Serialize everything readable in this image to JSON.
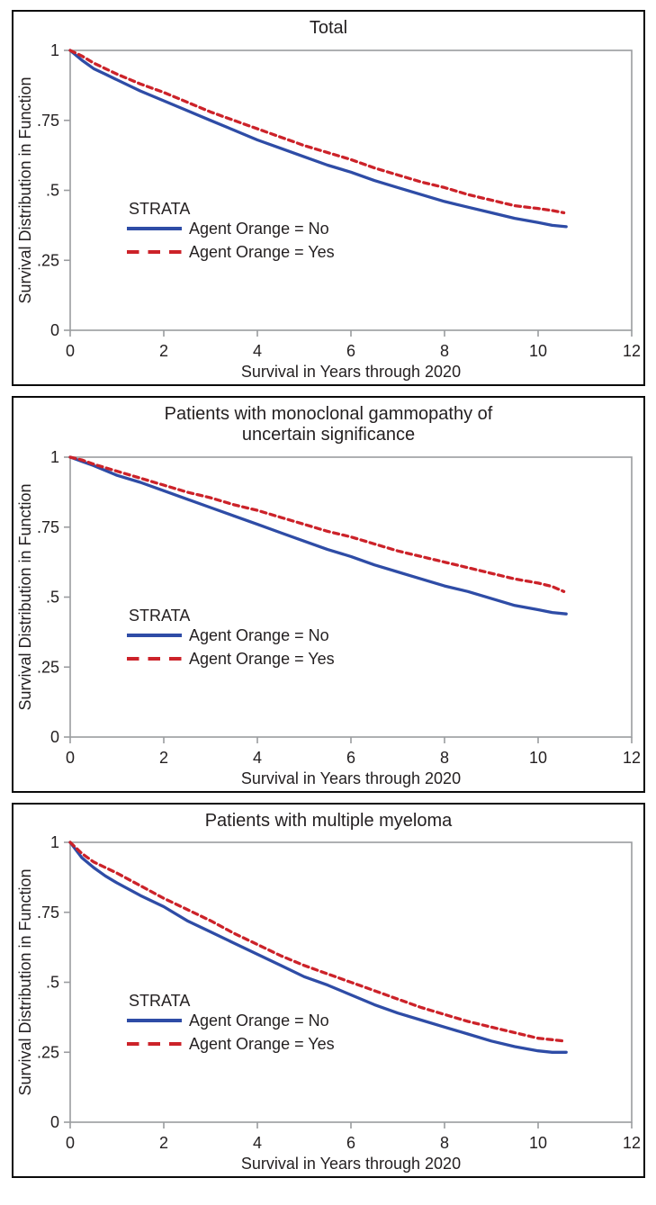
{
  "colors": {
    "no_line": "#2e4ca6",
    "yes_line": "#cc2229",
    "axis": "#9a9c9f",
    "text": "#231f20",
    "panel_border": "#0a0a0a",
    "background": "#ffffff"
  },
  "chart_data": [
    {
      "type": "line",
      "title": "Total",
      "xlabel": "Survival in Years through 2020",
      "ylabel": "Survival Distribution in Function",
      "xlim": [
        0,
        12
      ],
      "ylim": [
        0,
        1
      ],
      "xticks": [
        "0",
        "2",
        "4",
        "6",
        "8",
        "10",
        "12"
      ],
      "xtick_values": [
        0,
        2,
        4,
        6,
        8,
        10,
        12
      ],
      "yticks": [
        "0",
        ".25",
        ".5",
        ".75",
        "1"
      ],
      "ytick_values": [
        0,
        0.25,
        0.5,
        0.75,
        1
      ],
      "grid": false,
      "legend": {
        "title": "STRATA",
        "position": "inside-left",
        "entries": [
          {
            "label": "Agent Orange = No",
            "style": "solid",
            "color": "#2e4ca6"
          },
          {
            "label": "Agent Orange = Yes",
            "style": "dashed",
            "color": "#cc2229"
          }
        ]
      },
      "series": [
        {
          "name": "Agent Orange = No",
          "id": "agent-orange-no",
          "style": "solid",
          "color": "#2e4ca6",
          "x": [
            0,
            0.25,
            0.5,
            0.75,
            1,
            1.5,
            2,
            2.5,
            3,
            3.5,
            4,
            4.5,
            5,
            5.5,
            6,
            6.5,
            7,
            7.5,
            8,
            8.5,
            9,
            9.5,
            10,
            10.3,
            10.6
          ],
          "y": [
            1.0,
            0.965,
            0.935,
            0.915,
            0.895,
            0.855,
            0.82,
            0.785,
            0.75,
            0.715,
            0.68,
            0.65,
            0.62,
            0.59,
            0.565,
            0.535,
            0.51,
            0.485,
            0.46,
            0.44,
            0.42,
            0.4,
            0.385,
            0.375,
            0.37
          ]
        },
        {
          "name": "Agent Orange = Yes",
          "id": "agent-orange-yes",
          "style": "dashed",
          "color": "#cc2229",
          "x": [
            0,
            0.25,
            0.5,
            0.75,
            1,
            1.5,
            2,
            2.5,
            3,
            3.5,
            4,
            4.5,
            5,
            5.5,
            6,
            6.5,
            7,
            7.5,
            8,
            8.5,
            9,
            9.5,
            10,
            10.3,
            10.55
          ],
          "y": [
            1.0,
            0.98,
            0.955,
            0.935,
            0.915,
            0.88,
            0.85,
            0.815,
            0.78,
            0.75,
            0.72,
            0.69,
            0.66,
            0.635,
            0.61,
            0.58,
            0.555,
            0.53,
            0.51,
            0.485,
            0.465,
            0.445,
            0.435,
            0.428,
            0.42
          ]
        }
      ]
    },
    {
      "type": "line",
      "title": "Patients with monoclonal gammopathy of uncertain significance",
      "xlabel": "Survival in Years through 2020",
      "ylabel": "Survival Distribution in Function",
      "xlim": [
        0,
        12
      ],
      "ylim": [
        0,
        1
      ],
      "xticks": [
        "0",
        "2",
        "4",
        "6",
        "8",
        "10",
        "12"
      ],
      "xtick_values": [
        0,
        2,
        4,
        6,
        8,
        10,
        12
      ],
      "yticks": [
        "0",
        ".25",
        ".5",
        ".75",
        "1"
      ],
      "ytick_values": [
        0,
        0.25,
        0.5,
        0.75,
        1
      ],
      "grid": false,
      "legend": {
        "title": "STRATA",
        "position": "inside-left",
        "entries": [
          {
            "label": "Agent Orange = No",
            "style": "solid",
            "color": "#2e4ca6"
          },
          {
            "label": "Agent Orange = Yes",
            "style": "dashed",
            "color": "#cc2229"
          }
        ]
      },
      "series": [
        {
          "name": "Agent Orange = No",
          "id": "agent-orange-no",
          "style": "solid",
          "color": "#2e4ca6",
          "x": [
            0,
            0.25,
            0.5,
            1,
            1.5,
            2,
            2.5,
            3,
            3.5,
            4,
            4.5,
            5,
            5.5,
            6,
            6.5,
            7,
            7.5,
            8,
            8.5,
            9,
            9.5,
            10,
            10.3,
            10.6
          ],
          "y": [
            1.0,
            0.985,
            0.97,
            0.935,
            0.91,
            0.88,
            0.85,
            0.82,
            0.79,
            0.76,
            0.73,
            0.7,
            0.67,
            0.645,
            0.615,
            0.59,
            0.565,
            0.54,
            0.52,
            0.495,
            0.47,
            0.455,
            0.445,
            0.44
          ]
        },
        {
          "name": "Agent Orange = Yes",
          "id": "agent-orange-yes",
          "style": "dashed",
          "color": "#cc2229",
          "x": [
            0,
            0.25,
            0.5,
            1,
            1.5,
            2,
            2.5,
            3,
            3.5,
            4,
            4.5,
            5,
            5.5,
            6,
            6.5,
            7,
            7.5,
            8,
            8.5,
            9,
            9.5,
            10,
            10.3,
            10.55
          ],
          "y": [
            1.0,
            0.99,
            0.975,
            0.95,
            0.925,
            0.9,
            0.875,
            0.855,
            0.83,
            0.81,
            0.785,
            0.76,
            0.735,
            0.715,
            0.69,
            0.665,
            0.645,
            0.625,
            0.605,
            0.585,
            0.565,
            0.55,
            0.538,
            0.52
          ]
        }
      ]
    },
    {
      "type": "line",
      "title": "Patients with multiple myeloma",
      "xlabel": "Survival in Years through 2020",
      "ylabel": "Survival Distribution in Function",
      "xlim": [
        0,
        12
      ],
      "ylim": [
        0,
        1
      ],
      "xticks": [
        "0",
        "2",
        "4",
        "6",
        "8",
        "10",
        "12"
      ],
      "xtick_values": [
        0,
        2,
        4,
        6,
        8,
        10,
        12
      ],
      "yticks": [
        "0",
        ".25",
        ".5",
        ".75",
        "1"
      ],
      "ytick_values": [
        0,
        0.25,
        0.5,
        0.75,
        1
      ],
      "grid": false,
      "legend": {
        "title": "STRATA",
        "position": "inside-left",
        "entries": [
          {
            "label": "Agent Orange = No",
            "style": "solid",
            "color": "#2e4ca6"
          },
          {
            "label": "Agent Orange = Yes",
            "style": "dashed",
            "color": "#cc2229"
          }
        ]
      },
      "series": [
        {
          "name": "Agent Orange = No",
          "id": "agent-orange-no",
          "style": "solid",
          "color": "#2e4ca6",
          "x": [
            0,
            0.25,
            0.5,
            0.75,
            1,
            1.5,
            2,
            2.5,
            3,
            3.5,
            4,
            4.5,
            5,
            5.5,
            6,
            6.5,
            7,
            7.5,
            8,
            8.5,
            9,
            9.5,
            10,
            10.3,
            10.6
          ],
          "y": [
            1.0,
            0.945,
            0.91,
            0.88,
            0.855,
            0.81,
            0.77,
            0.72,
            0.68,
            0.64,
            0.6,
            0.56,
            0.52,
            0.49,
            0.455,
            0.42,
            0.39,
            0.365,
            0.34,
            0.315,
            0.29,
            0.27,
            0.255,
            0.25,
            0.25
          ]
        },
        {
          "name": "Agent Orange = Yes",
          "id": "agent-orange-yes",
          "style": "dashed",
          "color": "#cc2229",
          "x": [
            0,
            0.25,
            0.5,
            0.75,
            1,
            1.5,
            2,
            2.5,
            3,
            3.5,
            4,
            4.5,
            5,
            5.5,
            6,
            6.5,
            7,
            7.5,
            8,
            8.5,
            9,
            9.5,
            10,
            10.3,
            10.55
          ],
          "y": [
            1.0,
            0.96,
            0.93,
            0.91,
            0.89,
            0.845,
            0.8,
            0.76,
            0.72,
            0.675,
            0.635,
            0.595,
            0.56,
            0.53,
            0.5,
            0.47,
            0.44,
            0.41,
            0.385,
            0.36,
            0.34,
            0.32,
            0.3,
            0.295,
            0.29
          ]
        }
      ]
    }
  ]
}
